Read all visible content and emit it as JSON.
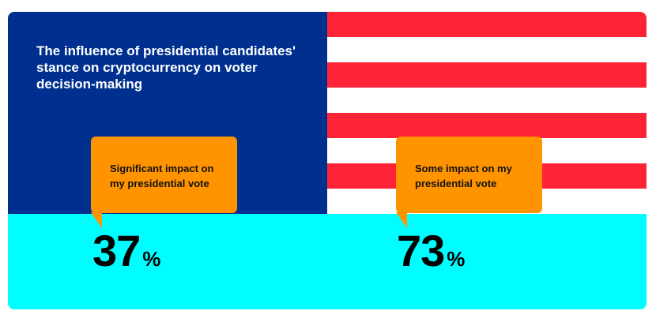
{
  "chart_data": {
    "type": "bar",
    "title": "The influence of presidential candidates' stance on cryptocurrency on voter decision-making",
    "categories": [
      "Significant impact on my presidential vote",
      "Some impact on my presidential vote"
    ],
    "values": [
      37,
      73
    ],
    "unit": "%"
  },
  "colors": {
    "navy": "#00308f",
    "red": "#ff2338",
    "white": "#ffffff",
    "cyan": "#00fdff",
    "orange": "#ff9300"
  }
}
